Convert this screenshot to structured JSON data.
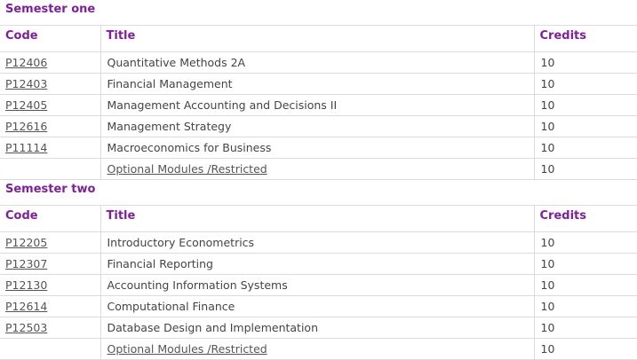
{
  "headers": {
    "code": "Code",
    "title": "Title",
    "credits": "Credits"
  },
  "sections": [
    {
      "title": "Semester one",
      "rows": [
        {
          "code": "P12406",
          "title": "Quantitative Methods 2A",
          "credits": "10"
        },
        {
          "code": "P12403",
          "title": "Financial Management",
          "credits": "10"
        },
        {
          "code": "P12405",
          "title": "Management Accounting and Decisions II",
          "credits": "10"
        },
        {
          "code": "P12616",
          "title": "Management Strategy",
          "credits": "10"
        },
        {
          "code": "P11114",
          "title": "Macroeconomics for Business",
          "credits": "10"
        }
      ],
      "optional": {
        "title": "Optional Modules /Restricted",
        "credits": "10"
      }
    },
    {
      "title": "Semester two",
      "rows": [
        {
          "code": "P12205",
          "title": "Introductory Econometrics",
          "credits": "10"
        },
        {
          "code": "P12307",
          "title": "Financial Reporting",
          "credits": "10"
        },
        {
          "code": "P12130",
          "title": "Accounting Information Systems",
          "credits": "10"
        },
        {
          "code": "P12614",
          "title": "Computational Finance",
          "credits": "10"
        },
        {
          "code": "P12503",
          "title": "Database Design and Implementation",
          "credits": "10"
        }
      ],
      "optional": {
        "title": "Optional Modules /Restricted",
        "credits": "10"
      }
    }
  ],
  "colors": {
    "heading": "#7f1f9e",
    "text": "#444444",
    "border": "#dcdcdc"
  }
}
